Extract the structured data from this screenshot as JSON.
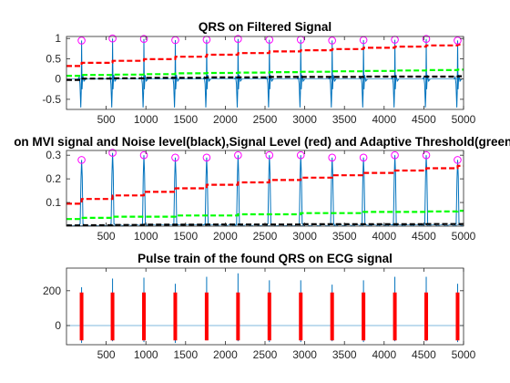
{
  "figure": {
    "background": "#ffffff",
    "axes_background": "#ffffff",
    "axis_color": "#262626"
  },
  "chart_data": [
    {
      "type": "line",
      "title": "QRS on Filtered Signal",
      "xlabel": "",
      "ylabel": "",
      "xlim": [
        0,
        5000
      ],
      "ylim": [
        -0.75,
        1.05
      ],
      "xticks": [
        500,
        1000,
        1500,
        2000,
        2500,
        3000,
        3500,
        4000,
        4500,
        5000
      ],
      "yticks": [
        -0.5,
        0,
        0.5,
        1
      ],
      "ytick_labels": [
        "-0.5",
        "0",
        "0.5",
        "1"
      ],
      "grid": false,
      "beats_x": [
        190,
        580,
        975,
        1370,
        1765,
        2160,
        2555,
        2950,
        3345,
        3740,
        4135,
        4530,
        4925
      ],
      "series": [
        {
          "role": "signal",
          "color": "#0072bd",
          "peak_values": [
            0.95,
            1.0,
            0.99,
            0.96,
            0.97,
            0.99,
            0.97,
            0.97,
            0.95,
            0.96,
            0.97,
            0.99,
            0.95
          ],
          "trough": -0.7
        },
        {
          "role": "peak_markers",
          "color": "#ff00ff",
          "values": [
            0.95,
            1.0,
            0.99,
            0.96,
            0.97,
            0.99,
            0.97,
            0.97,
            0.95,
            0.96,
            0.97,
            0.99,
            0.95
          ]
        },
        {
          "role": "signal_level",
          "color": "#ff0000",
          "values": [
            0.32,
            0.4,
            0.45,
            0.49,
            0.55,
            0.6,
            0.64,
            0.68,
            0.71,
            0.74,
            0.77,
            0.8,
            0.83,
            0.85
          ]
        },
        {
          "role": "adaptive_threshold",
          "color": "#00ff00",
          "values": [
            0.08,
            0.1,
            0.11,
            0.12,
            0.14,
            0.15,
            0.16,
            0.17,
            0.18,
            0.19,
            0.2,
            0.21,
            0.22,
            0.23
          ]
        },
        {
          "role": "noise_level",
          "color": "#000000",
          "values": [
            -0.02,
            0.01,
            0.02,
            0.03,
            0.03,
            0.04,
            0.04,
            0.05,
            0.05,
            0.05,
            0.06,
            0.06,
            0.06,
            0.07
          ]
        }
      ]
    },
    {
      "type": "line",
      "title": "on MVI signal and Noise level(black),Signal Level (red) and Adaptive Threshold(green)",
      "xlabel": "",
      "ylabel": "",
      "xlim": [
        0,
        5000
      ],
      "ylim": [
        0,
        0.32
      ],
      "xticks": [
        500,
        1000,
        1500,
        2000,
        2500,
        3000,
        3500,
        4000,
        4500,
        5000
      ],
      "yticks": [
        0.1,
        0.2,
        0.3
      ],
      "ytick_labels": [
        "0.1",
        "0.2",
        "0.3"
      ],
      "grid": false,
      "beats_x": [
        190,
        580,
        975,
        1370,
        1765,
        2160,
        2555,
        2950,
        3345,
        3740,
        4135,
        4530,
        4925
      ],
      "series": [
        {
          "role": "signal",
          "color": "#0072bd",
          "peak_values": [
            0.28,
            0.31,
            0.3,
            0.29,
            0.29,
            0.3,
            0.3,
            0.3,
            0.29,
            0.29,
            0.3,
            0.3,
            0.28
          ]
        },
        {
          "role": "peak_markers",
          "color": "#ff00ff",
          "values": [
            0.28,
            0.31,
            0.3,
            0.29,
            0.29,
            0.3,
            0.3,
            0.3,
            0.29,
            0.29,
            0.3,
            0.3,
            0.28
          ]
        },
        {
          "role": "signal_level",
          "color": "#ff0000",
          "values": [
            0.095,
            0.115,
            0.13,
            0.145,
            0.16,
            0.175,
            0.185,
            0.195,
            0.205,
            0.215,
            0.225,
            0.235,
            0.245,
            0.255,
            0.265
          ]
        },
        {
          "role": "adaptive_threshold",
          "color": "#00ff00",
          "values": [
            0.03,
            0.035,
            0.04,
            0.04,
            0.045,
            0.045,
            0.05,
            0.05,
            0.055,
            0.055,
            0.06,
            0.06,
            0.062,
            0.065,
            0.068
          ]
        },
        {
          "role": "noise_level",
          "color": "#000000",
          "values": [
            0.003,
            0.004,
            0.005,
            0.006,
            0.006,
            0.007,
            0.007,
            0.007,
            0.008,
            0.008,
            0.008,
            0.008,
            0.009,
            0.009,
            0.009
          ]
        }
      ]
    },
    {
      "type": "line",
      "title": "Pulse train of the found QRS on ECG signal",
      "xlabel": "",
      "ylabel": "",
      "xlim": [
        0,
        5000
      ],
      "ylim": [
        -110,
        330
      ],
      "xticks": [
        500,
        1000,
        1500,
        2000,
        2500,
        3000,
        3500,
        4000,
        4500,
        5000
      ],
      "yticks": [
        0,
        200
      ],
      "ytick_labels": [
        "0",
        "200"
      ],
      "grid": false,
      "beats_x": [
        190,
        580,
        975,
        1370,
        1765,
        2160,
        2555,
        2950,
        3345,
        3740,
        4135,
        4530,
        4925
      ],
      "series": [
        {
          "role": "signal",
          "color": "#0072bd",
          "peak_values": [
            220,
            270,
            275,
            240,
            280,
            300,
            260,
            260,
            235,
            260,
            280,
            280,
            240
          ],
          "trough_values": [
            -100,
            -90,
            -95,
            -100,
            -85,
            -90,
            -95,
            -95,
            -90,
            -95,
            -90,
            -90,
            -95
          ]
        },
        {
          "role": "pulse_train",
          "color": "#ff0000",
          "high": 190,
          "low": -85
        }
      ]
    }
  ]
}
